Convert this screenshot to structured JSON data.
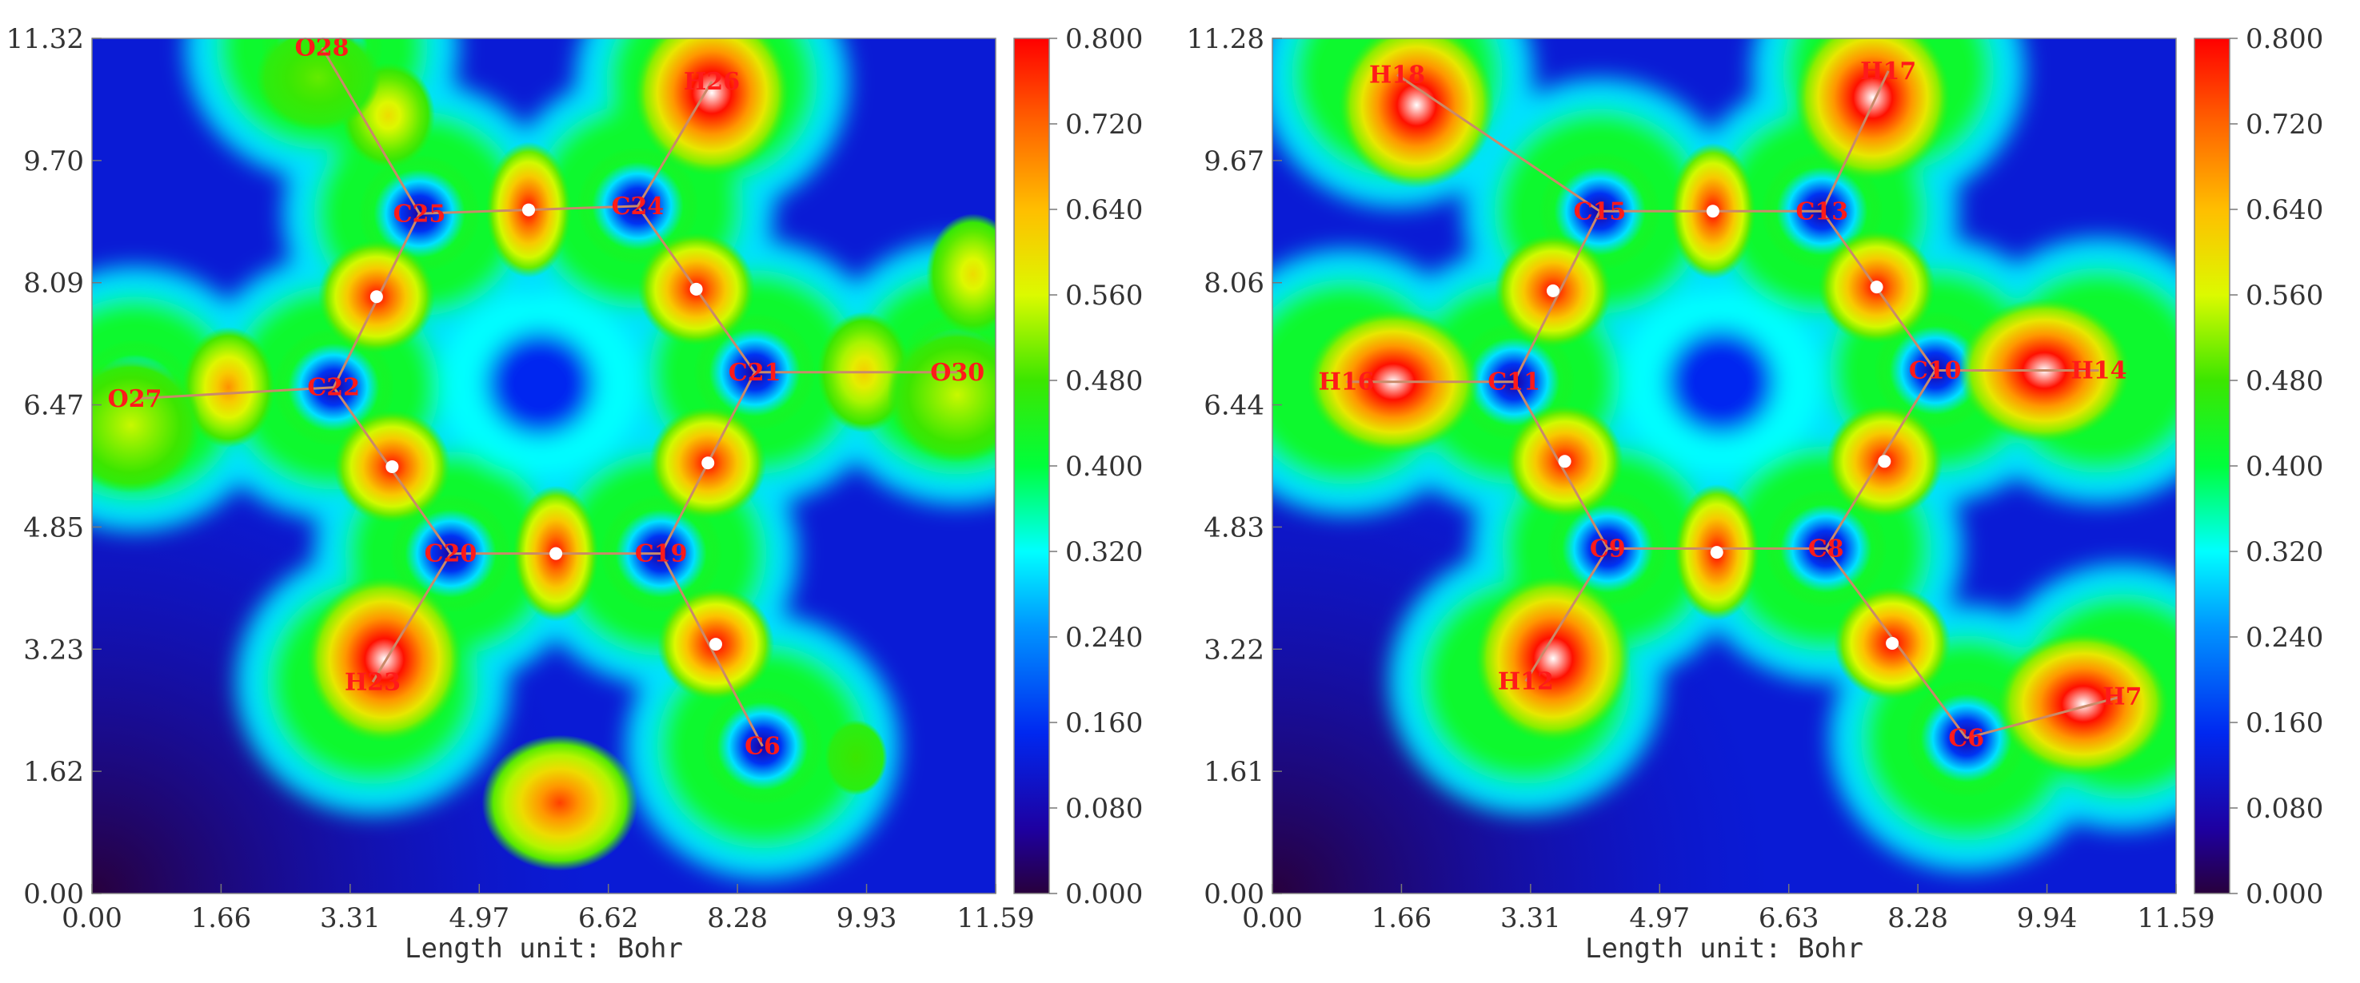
{
  "chart_data": [
    {
      "type": "heatmap",
      "title": "",
      "xlabel": "Length unit: Bohr",
      "ylabel": "",
      "xlim": [
        0,
        11.59
      ],
      "ylim": [
        0,
        11.32
      ],
      "x_ticks": [
        "0.00",
        "1.66",
        "3.31",
        "4.97",
        "6.62",
        "8.28",
        "9.93",
        "11.59"
      ],
      "y_ticks": [
        "0.00",
        "1.62",
        "3.23",
        "4.85",
        "6.47",
        "8.09",
        "9.70",
        "11.32"
      ],
      "colorbar": {
        "min": 0.0,
        "max": 0.8,
        "ticks": [
          "0.000",
          "0.080",
          "0.160",
          "0.240",
          "0.320",
          "0.400",
          "0.480",
          "0.560",
          "0.640",
          "0.720",
          "0.800"
        ]
      },
      "atoms": [
        {
          "label": "O28",
          "x": 2.95,
          "y": 11.2
        },
        {
          "label": "H26",
          "x": 7.95,
          "y": 10.75
        },
        {
          "label": "C25",
          "x": 4.2,
          "y": 9.0
        },
        {
          "label": "C24",
          "x": 7.0,
          "y": 9.1
        },
        {
          "label": "C22",
          "x": 3.1,
          "y": 6.7
        },
        {
          "label": "C21",
          "x": 8.5,
          "y": 6.9
        },
        {
          "label": "O27",
          "x": 0.55,
          "y": 6.55
        },
        {
          "label": "O30",
          "x": 11.1,
          "y": 6.9
        },
        {
          "label": "C20",
          "x": 4.6,
          "y": 4.5
        },
        {
          "label": "C19",
          "x": 7.3,
          "y": 4.5
        },
        {
          "label": "H23",
          "x": 3.6,
          "y": 2.8
        },
        {
          "label": "C6",
          "x": 8.6,
          "y": 1.95
        }
      ],
      "bonds": [
        [
          "O28",
          "C25"
        ],
        [
          "H26",
          "C24"
        ],
        [
          "C25",
          "C24"
        ],
        [
          "C25",
          "C22"
        ],
        [
          "C24",
          "C21"
        ],
        [
          "C22",
          "O27"
        ],
        [
          "C21",
          "O30"
        ],
        [
          "C22",
          "C20"
        ],
        [
          "C21",
          "C19"
        ],
        [
          "C20",
          "C19"
        ],
        [
          "C20",
          "H23"
        ],
        [
          "C19",
          "C6"
        ]
      ],
      "critical_points": [
        {
          "x": 5.6,
          "y": 9.05
        },
        {
          "x": 3.65,
          "y": 7.9
        },
        {
          "x": 7.75,
          "y": 8.0
        },
        {
          "x": 3.85,
          "y": 5.65
        },
        {
          "x": 7.9,
          "y": 5.7
        },
        {
          "x": 5.95,
          "y": 4.5
        },
        {
          "x": 8.0,
          "y": 3.3
        }
      ],
      "blobs": [
        {
          "x": 5.6,
          "y": 9.05,
          "v": 0.8,
          "rx": 0.55,
          "ry": 0.9
        },
        {
          "x": 3.65,
          "y": 7.9,
          "v": 0.8,
          "rx": 0.75,
          "ry": 0.75
        },
        {
          "x": 7.75,
          "y": 8.0,
          "v": 0.8,
          "rx": 0.75,
          "ry": 0.75
        },
        {
          "x": 3.85,
          "y": 5.65,
          "v": 0.8,
          "rx": 0.75,
          "ry": 0.75
        },
        {
          "x": 7.9,
          "y": 5.7,
          "v": 0.8,
          "rx": 0.75,
          "ry": 0.75
        },
        {
          "x": 5.95,
          "y": 4.5,
          "v": 0.8,
          "rx": 0.55,
          "ry": 0.9
        },
        {
          "x": 8.0,
          "y": 3.3,
          "v": 0.82,
          "rx": 0.75,
          "ry": 0.75
        },
        {
          "x": 7.95,
          "y": 10.6,
          "v": 0.9,
          "rx": 1.0,
          "ry": 1.1
        },
        {
          "x": 3.75,
          "y": 3.1,
          "v": 0.9,
          "rx": 1.0,
          "ry": 1.1
        },
        {
          "x": 6.0,
          "y": 1.2,
          "v": 0.75,
          "rx": 1.0,
          "ry": 0.9
        },
        {
          "x": 1.75,
          "y": 6.7,
          "v": 0.68,
          "rx": 0.6,
          "ry": 0.8
        },
        {
          "x": 9.9,
          "y": 6.9,
          "v": 0.62,
          "rx": 0.6,
          "ry": 0.8
        },
        {
          "x": 3.8,
          "y": 10.3,
          "v": 0.6,
          "rx": 0.6,
          "ry": 0.7
        },
        {
          "x": 11.3,
          "y": 8.2,
          "v": 0.6,
          "rx": 0.6,
          "ry": 0.8
        },
        {
          "x": 0.5,
          "y": 6.2,
          "v": 0.55,
          "rx": 0.9,
          "ry": 0.9
        },
        {
          "x": 11.1,
          "y": 6.6,
          "v": 0.55,
          "rx": 0.9,
          "ry": 0.9
        },
        {
          "x": 2.9,
          "y": 10.8,
          "v": 0.5,
          "rx": 0.8,
          "ry": 0.7
        },
        {
          "x": 9.8,
          "y": 1.8,
          "v": 0.48,
          "rx": 0.4,
          "ry": 0.5
        }
      ],
      "halos": [
        {
          "x": 4.2,
          "y": 9.0
        },
        {
          "x": 7.0,
          "y": 9.1
        },
        {
          "x": 3.1,
          "y": 6.7
        },
        {
          "x": 8.5,
          "y": 6.9
        },
        {
          "x": 0.55,
          "y": 6.55
        },
        {
          "x": 11.1,
          "y": 6.9
        },
        {
          "x": 4.6,
          "y": 4.5
        },
        {
          "x": 7.3,
          "y": 4.5
        },
        {
          "x": 8.6,
          "y": 1.95
        },
        {
          "x": 2.95,
          "y": 11.2
        }
      ],
      "background_level": 0.12,
      "ring_level": 0.45
    },
    {
      "type": "heatmap",
      "title": "",
      "xlabel": "Length unit: Bohr",
      "ylabel": "",
      "xlim": [
        0,
        11.59
      ],
      "ylim": [
        0,
        11.28
      ],
      "x_ticks": [
        "0.00",
        "1.66",
        "3.31",
        "4.97",
        "6.63",
        "8.28",
        "9.94",
        "11.59"
      ],
      "y_ticks": [
        "0.00",
        "1.61",
        "3.22",
        "4.83",
        "6.44",
        "8.06",
        "9.67",
        "11.28"
      ],
      "colorbar": {
        "min": 0.0,
        "max": 0.8,
        "ticks": [
          "0.000",
          "0.080",
          "0.160",
          "0.240",
          "0.320",
          "0.400",
          "0.480",
          "0.560",
          "0.640",
          "0.720",
          "0.800"
        ]
      },
      "atoms": [
        {
          "label": "H18",
          "x": 1.6,
          "y": 10.8
        },
        {
          "label": "H17",
          "x": 7.9,
          "y": 10.85
        },
        {
          "label": "C15",
          "x": 4.2,
          "y": 9.0
        },
        {
          "label": "C13",
          "x": 7.05,
          "y": 9.0
        },
        {
          "label": "H16",
          "x": 0.95,
          "y": 6.75
        },
        {
          "label": "C11",
          "x": 3.1,
          "y": 6.75
        },
        {
          "label": "C10",
          "x": 8.5,
          "y": 6.9
        },
        {
          "label": "H14",
          "x": 10.6,
          "y": 6.9
        },
        {
          "label": "C9",
          "x": 4.3,
          "y": 4.55
        },
        {
          "label": "C8",
          "x": 7.1,
          "y": 4.55
        },
        {
          "label": "H12",
          "x": 3.25,
          "y": 2.8
        },
        {
          "label": "C6",
          "x": 8.9,
          "y": 2.05
        },
        {
          "label": "H7",
          "x": 10.9,
          "y": 2.6
        }
      ],
      "bonds": [
        [
          "H18",
          "C15"
        ],
        [
          "H17",
          "C13"
        ],
        [
          "C15",
          "C13"
        ],
        [
          "C15",
          "C11"
        ],
        [
          "C13",
          "C10"
        ],
        [
          "H16",
          "C11"
        ],
        [
          "C10",
          "H14"
        ],
        [
          "C11",
          "C9"
        ],
        [
          "C10",
          "C8"
        ],
        [
          "C9",
          "C8"
        ],
        [
          "C9",
          "H12"
        ],
        [
          "C8",
          "C6"
        ],
        [
          "C6",
          "H7"
        ]
      ],
      "critical_points": [
        {
          "x": 5.65,
          "y": 9.0
        },
        {
          "x": 3.6,
          "y": 7.95
        },
        {
          "x": 7.75,
          "y": 8.0
        },
        {
          "x": 3.75,
          "y": 5.7
        },
        {
          "x": 7.85,
          "y": 5.7
        },
        {
          "x": 5.7,
          "y": 4.5
        },
        {
          "x": 7.95,
          "y": 3.3
        }
      ],
      "blobs": [
        {
          "x": 5.65,
          "y": 9.0,
          "v": 0.8,
          "rx": 0.55,
          "ry": 0.9
        },
        {
          "x": 3.6,
          "y": 7.95,
          "v": 0.8,
          "rx": 0.75,
          "ry": 0.75
        },
        {
          "x": 7.75,
          "y": 8.0,
          "v": 0.8,
          "rx": 0.75,
          "ry": 0.75
        },
        {
          "x": 3.75,
          "y": 5.7,
          "v": 0.8,
          "rx": 0.75,
          "ry": 0.75
        },
        {
          "x": 7.85,
          "y": 5.7,
          "v": 0.8,
          "rx": 0.75,
          "ry": 0.75
        },
        {
          "x": 5.7,
          "y": 4.5,
          "v": 0.8,
          "rx": 0.55,
          "ry": 0.9
        },
        {
          "x": 7.95,
          "y": 3.3,
          "v": 0.82,
          "rx": 0.75,
          "ry": 0.75
        },
        {
          "x": 1.85,
          "y": 10.4,
          "v": 0.9,
          "rx": 1.0,
          "ry": 1.1
        },
        {
          "x": 7.7,
          "y": 10.5,
          "v": 0.9,
          "rx": 1.0,
          "ry": 1.1
        },
        {
          "x": 1.55,
          "y": 6.75,
          "v": 0.9,
          "rx": 1.1,
          "ry": 0.95
        },
        {
          "x": 9.9,
          "y": 6.9,
          "v": 0.9,
          "rx": 1.1,
          "ry": 0.95
        },
        {
          "x": 3.6,
          "y": 3.1,
          "v": 0.9,
          "rx": 1.0,
          "ry": 1.1
        },
        {
          "x": 10.4,
          "y": 2.5,
          "v": 0.9,
          "rx": 1.1,
          "ry": 0.95
        }
      ],
      "halos": [
        {
          "x": 4.2,
          "y": 9.0
        },
        {
          "x": 7.05,
          "y": 9.0
        },
        {
          "x": 3.1,
          "y": 6.75
        },
        {
          "x": 8.5,
          "y": 6.9
        },
        {
          "x": 4.3,
          "y": 4.55
        },
        {
          "x": 7.1,
          "y": 4.55
        },
        {
          "x": 8.9,
          "y": 2.05
        }
      ],
      "background_level": 0.12,
      "ring_level": 0.45
    }
  ]
}
